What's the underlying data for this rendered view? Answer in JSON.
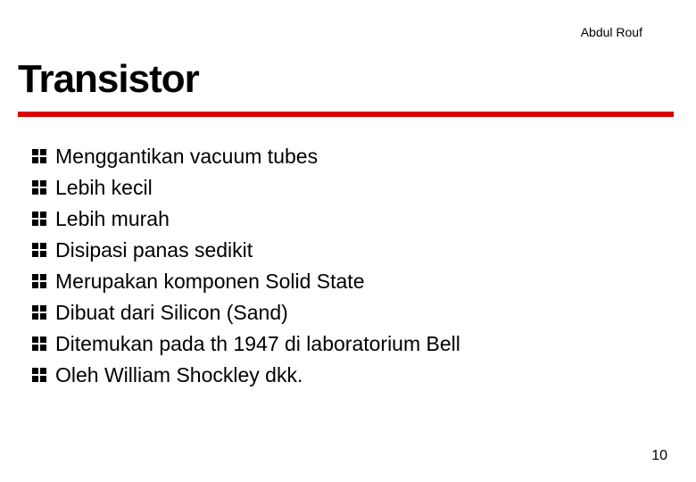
{
  "author": "Abdul Rouf",
  "title": "Transistor",
  "rule_color": "#d90000",
  "bullet_marker_color": "#000000",
  "bullets": [
    "Menggantikan vacuum tubes",
    "Lebih kecil",
    "Lebih murah",
    "Disipasi panas sedikit",
    "Merupakan komponen Solid State",
    "Dibuat dari Silicon (Sand)",
    "Ditemukan pada th 1947 di laboratorium Bell",
    "Oleh William Shockley dkk."
  ],
  "page_number": "10"
}
